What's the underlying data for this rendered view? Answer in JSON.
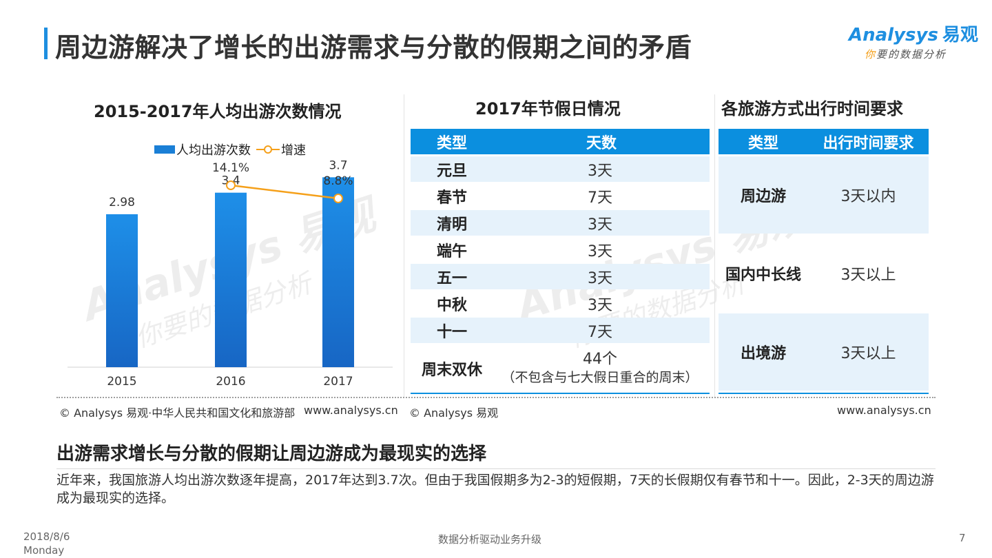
{
  "header": {
    "title": "周边游解决了增长的出游需求与分散的假期之间的矛盾",
    "logo_brand": "Analysys",
    "logo_cn": "易观",
    "logo_slogan_hl": "你",
    "logo_slogan": "要的数据分析"
  },
  "watermark": {
    "brand": "Analysys 易观",
    "slogan": "你要的数据分析"
  },
  "chart_section": {
    "title": "2015-2017年人均出游次数情况",
    "legend_bar": "人均出游次数",
    "legend_line": "增速",
    "source": "© Analysys 易观·中华人民共和国文化和旅游部",
    "site": "www.analysys.cn"
  },
  "chart_data": {
    "type": "bar",
    "title": "2015-2017年人均出游次数情况",
    "categories": [
      "2015",
      "2016",
      "2017"
    ],
    "series": [
      {
        "name": "人均出游次数",
        "type": "bar",
        "values": [
          2.98,
          3.4,
          3.7
        ],
        "labels": [
          "2.98",
          "3.4",
          "3.7"
        ],
        "color": "#1a7fd6"
      },
      {
        "name": "增速",
        "type": "line",
        "x": [
          "2016",
          "2017"
        ],
        "values": [
          14.1,
          8.8
        ],
        "labels": [
          "14.1%",
          "8.8%"
        ],
        "color": "#f5a01a"
      }
    ],
    "legend": "top-right"
  },
  "holiday_section": {
    "title": "2017年节假日情况",
    "headers": [
      "类型",
      "天数"
    ],
    "rows": [
      {
        "type": "元旦",
        "days": "3天"
      },
      {
        "type": "春节",
        "days": "7天"
      },
      {
        "type": "清明",
        "days": "3天"
      },
      {
        "type": "端午",
        "days": "3天"
      },
      {
        "type": "五一",
        "days": "3天"
      },
      {
        "type": "中秋",
        "days": "3天"
      },
      {
        "type": "十一",
        "days": "7天"
      }
    ],
    "weekend": {
      "type": "周末双休",
      "days": "44个",
      "note": "（不包含与七大假日重合的周末）"
    }
  },
  "travel_section": {
    "title": "各旅游方式出行时间要求",
    "headers": [
      "类型",
      "出行时间要求"
    ],
    "rows": [
      {
        "type": "周边游",
        "req": "3天以内"
      },
      {
        "type": "国内中长线",
        "req": "3天以上"
      },
      {
        "type": "出境游",
        "req": "3天以上"
      }
    ],
    "source": "© Analysys 易观",
    "site": "www.analysys.cn"
  },
  "conclusion": {
    "title": "出游需求增长与分散的假期让周边游成为最现实的选择",
    "body": "近年来，我国旅游人均出游次数逐年提高，2017年达到3.7次。但由于我国假期多为2-3的短假期，7天的长假期仅有春节和十一。因此，2-3天的周边游成为最现实的选择。"
  },
  "footer": {
    "date": "2018/8/6",
    "weekday": "Monday",
    "center": "数据分析驱动业务升级",
    "page": "7"
  },
  "colors": {
    "accent": "#0b8fdf",
    "bar": "#1a7fd6",
    "line": "#f5a01a",
    "row_alt": "#e6f2fb"
  }
}
